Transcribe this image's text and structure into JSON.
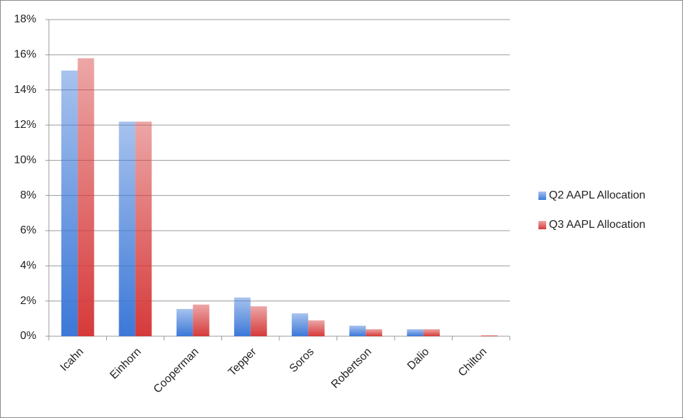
{
  "chart_data": {
    "type": "bar",
    "categories": [
      "Icahn",
      "Einhorn",
      "Cooperman",
      "Tepper",
      "Soros",
      "Robertson",
      "Dalio",
      "Chilton"
    ],
    "series": [
      {
        "name": "Q2 AAPL Allocation",
        "color": "#3c78d8",
        "values": [
          15.1,
          12.2,
          1.55,
          2.2,
          1.3,
          0.6,
          0.4,
          0
        ]
      },
      {
        "name": "Q3 AAPL Allocation",
        "color": "#d63a3a",
        "values": [
          15.8,
          12.2,
          1.8,
          1.7,
          0.9,
          0.4,
          0.4,
          0.05
        ]
      }
    ],
    "ylim": [
      0,
      18
    ],
    "yticks": [
      {
        "value": 0,
        "label": "0%"
      },
      {
        "value": 2,
        "label": "2%"
      },
      {
        "value": 4,
        "label": "4%"
      },
      {
        "value": 6,
        "label": "6%"
      },
      {
        "value": 8,
        "label": "8%"
      },
      {
        "value": 10,
        "label": "10%"
      },
      {
        "value": 12,
        "label": "12%"
      },
      {
        "value": 14,
        "label": "14%"
      },
      {
        "value": 16,
        "label": "16%"
      },
      {
        "value": 18,
        "label": "18%"
      }
    ],
    "grid": true,
    "legend": "right"
  }
}
